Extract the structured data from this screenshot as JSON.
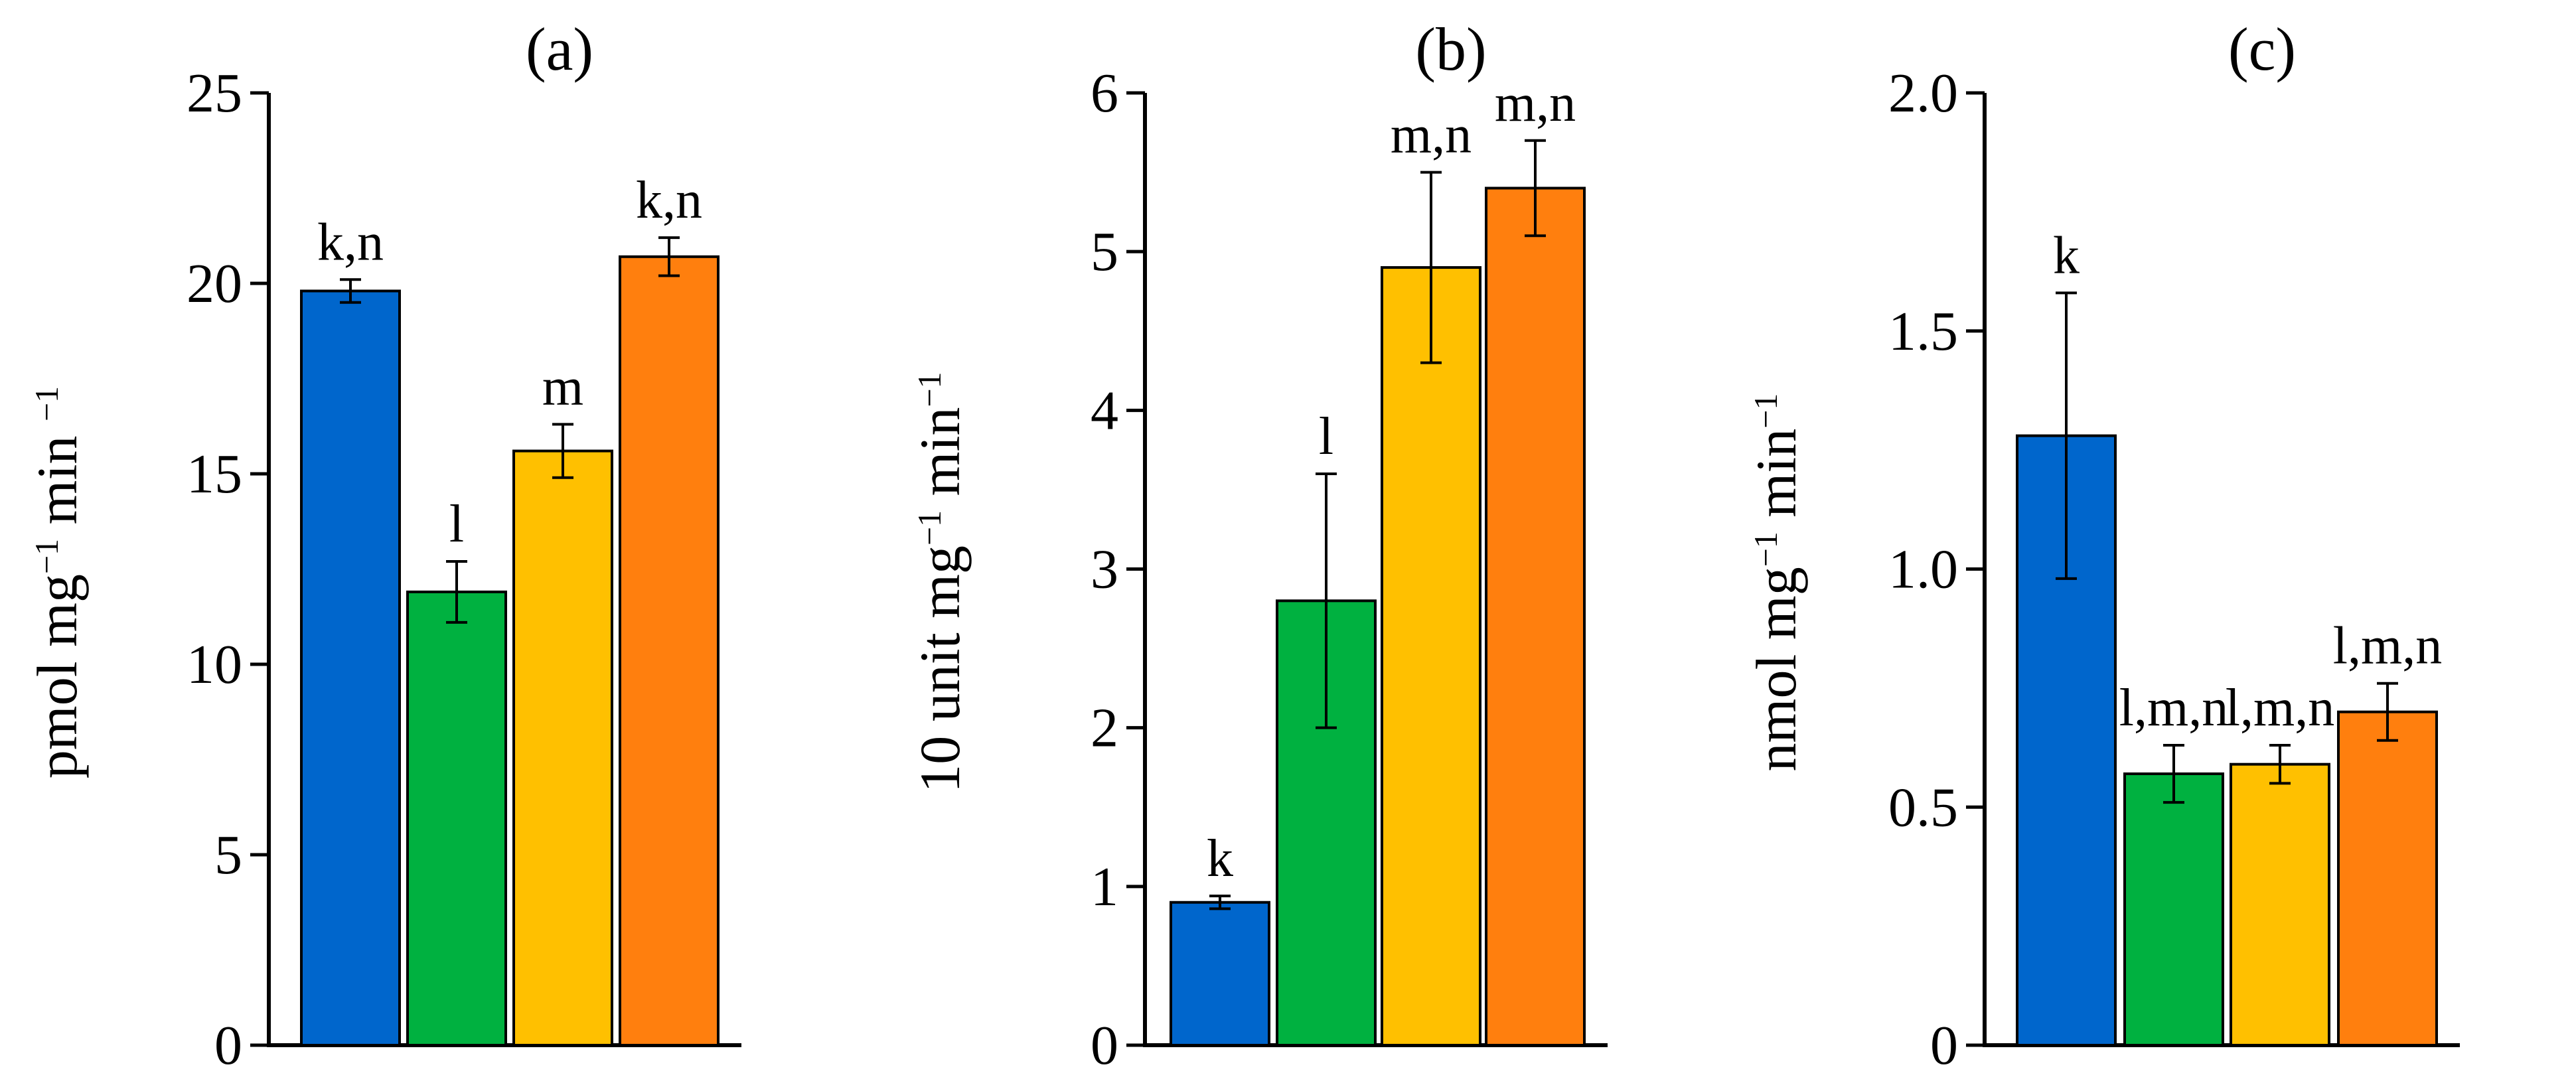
{
  "chart_data": [
    {
      "type": "bar",
      "title": "(a)",
      "ylabel": {
        "parts": [
          {
            "t": "pmol mg"
          },
          {
            "t": "−1",
            "sup": true
          },
          {
            "t": " min "
          },
          {
            "t": "−1",
            "sup": true
          }
        ]
      },
      "ylim": [
        0,
        25
      ],
      "yticks": [
        "0",
        "5",
        "10",
        "15",
        "20",
        "25"
      ],
      "ytick_values": [
        0,
        5,
        10,
        15,
        20,
        25
      ],
      "bars": [
        {
          "value": 19.8,
          "err": 0.3,
          "label": "k,n",
          "color": "#0066CC"
        },
        {
          "value": 11.9,
          "err": 0.8,
          "label": "l",
          "color": "#00B140"
        },
        {
          "value": 15.6,
          "err": 0.7,
          "label": "m",
          "color": "#FFC000"
        },
        {
          "value": 20.7,
          "err": 0.5,
          "label": "k,n",
          "color": "#FF7F0E"
        }
      ]
    },
    {
      "type": "bar",
      "title": "(b)",
      "ylabel": {
        "parts": [
          {
            "t": "10 unit mg"
          },
          {
            "t": "−1",
            "sup": true
          },
          {
            "t": " min"
          },
          {
            "t": "−1",
            "sup": true
          }
        ]
      },
      "ylim": [
        0,
        6
      ],
      "yticks": [
        "0",
        "1",
        "2",
        "3",
        "4",
        "5",
        "6"
      ],
      "ytick_values": [
        0,
        1,
        2,
        3,
        4,
        5,
        6
      ],
      "bars": [
        {
          "value": 0.9,
          "err": 0.04,
          "label": "k",
          "color": "#0066CC"
        },
        {
          "value": 2.8,
          "err": 0.8,
          "label": "l",
          "color": "#00B140"
        },
        {
          "value": 4.9,
          "err": 0.6,
          "label": "m,n",
          "color": "#FFC000"
        },
        {
          "value": 5.4,
          "err": 0.3,
          "label": "m,n",
          "color": "#FF7F0E"
        }
      ]
    },
    {
      "type": "bar",
      "title": "(c)",
      "ylabel": {
        "parts": [
          {
            "t": "nmol mg"
          },
          {
            "t": "−1",
            "sup": true
          },
          {
            "t": " min"
          },
          {
            "t": "−1",
            "sup": true
          }
        ]
      },
      "ylim": [
        0,
        2.0
      ],
      "yticks": [
        "0",
        "0.5",
        "1.0",
        "1.5",
        "2.0"
      ],
      "ytick_values": [
        0,
        0.5,
        1.0,
        1.5,
        2.0
      ],
      "bars": [
        {
          "value": 1.28,
          "err": 0.3,
          "label": "k",
          "color": "#0066CC"
        },
        {
          "value": 0.57,
          "err": 0.06,
          "label": "l,m,n",
          "color": "#00B140"
        },
        {
          "value": 0.59,
          "err": 0.04,
          "label": "l,m,n",
          "color": "#FFC000"
        },
        {
          "value": 0.7,
          "err": 0.06,
          "label": "l,m,n",
          "color": "#FF7F0E"
        }
      ]
    }
  ]
}
